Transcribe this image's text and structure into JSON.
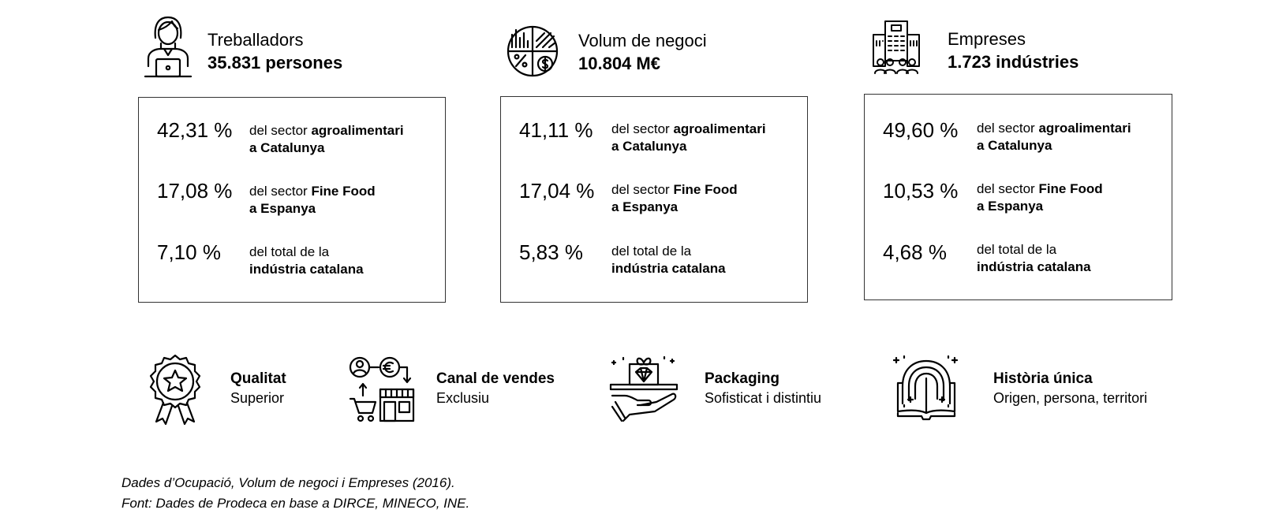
{
  "stats": [
    {
      "icon": "worker-laptop-icon",
      "title": "Treballadors",
      "value": "35.831 persones",
      "rows": [
        {
          "pct": "42,31 %",
          "pre": "del sector ",
          "bold": "agroalimentari",
          "line2": "a Catalunya",
          "line2_bold": true
        },
        {
          "pct": "17,08 %",
          "pre": "del sector ",
          "bold": "Fine Food",
          "line2": "a Espanya",
          "line2_bold": true
        },
        {
          "pct": "7,10 %",
          "pre": "del total de la",
          "bold": "",
          "line2": "indústria catalana",
          "line2_bold": true
        }
      ]
    },
    {
      "icon": "pie-chart-money-icon",
      "title": "Volum de negoci",
      "value": "10.804 M€",
      "rows": [
        {
          "pct": "41,11 %",
          "pre": "del sector ",
          "bold": "agroalimentari",
          "line2": "a Catalunya",
          "line2_bold": true
        },
        {
          "pct": "17,04 %",
          "pre": "del sector ",
          "bold": "Fine Food",
          "line2": "a Espanya",
          "line2_bold": true
        },
        {
          "pct": "5,83 %",
          "pre": "del total de la",
          "bold": "",
          "line2": "indústria catalana",
          "line2_bold": true
        }
      ]
    },
    {
      "icon": "company-building-icon",
      "title": "Empreses",
      "value": "1.723 indústries",
      "rows": [
        {
          "pct": "49,60 %",
          "pre": "del sector ",
          "bold": "agroalimentari",
          "line2": "a Catalunya",
          "line2_bold": true
        },
        {
          "pct": "10,53 %",
          "pre": "del sector ",
          "bold": "Fine Food",
          "line2": "a Espanya",
          "line2_bold": true
        },
        {
          "pct": "4,68 %",
          "pre": "del total de la",
          "bold": "",
          "line2": "indústria catalana",
          "line2_bold": true
        }
      ]
    }
  ],
  "features": [
    {
      "icon": "quality-badge-icon",
      "title": "Qualitat",
      "subtitle": "Superior"
    },
    {
      "icon": "sales-channel-icon",
      "title": "Canal de vendes",
      "subtitle": "Exclusiu"
    },
    {
      "icon": "diamond-packaging-icon",
      "title": "Packaging",
      "subtitle": "Sofisticat i distintiu"
    },
    {
      "icon": "story-book-icon",
      "title": "Història única",
      "subtitle": "Origen, persona, territori"
    }
  ],
  "footer": {
    "line1": "Dades d’Ocupació, Volum de negoci i Empreses (2016).",
    "line2": "Font: Dades de Prodeca en base a DIRCE, MINECO, INE."
  },
  "colors": {
    "text": "#000000",
    "border": "#333333",
    "background": "#ffffff"
  }
}
